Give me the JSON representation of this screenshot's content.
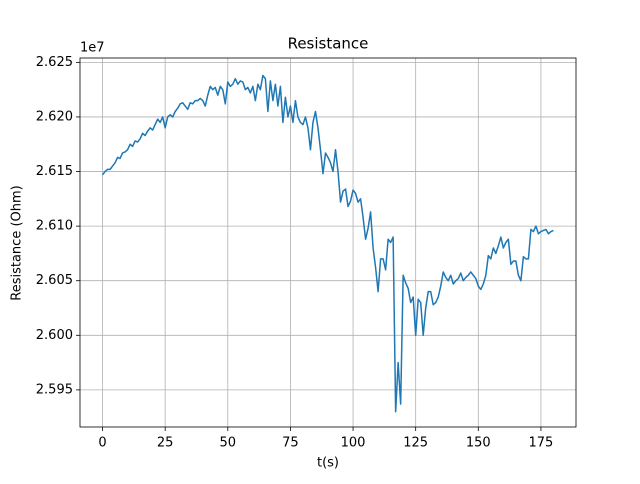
{
  "chart_data": {
    "type": "line",
    "title": "Resistance",
    "x_label": "t(s)",
    "y_label": "Resistance (Ohm)",
    "y_offset_text": "1e7",
    "x": [
      0,
      1,
      2,
      3,
      4,
      5,
      6,
      7,
      8,
      9,
      10,
      11,
      12,
      13,
      14,
      15,
      16,
      17,
      18,
      19,
      20,
      21,
      22,
      23,
      24,
      25,
      26,
      27,
      28,
      29,
      30,
      31,
      32,
      33,
      34,
      35,
      36,
      37,
      38,
      39,
      40,
      41,
      42,
      43,
      44,
      45,
      46,
      47,
      48,
      49,
      50,
      51,
      52,
      53,
      54,
      55,
      56,
      57,
      58,
      59,
      60,
      61,
      62,
      63,
      64,
      65,
      66,
      67,
      68,
      69,
      70,
      71,
      72,
      73,
      74,
      75,
      76,
      77,
      78,
      79,
      80,
      81,
      82,
      83,
      84,
      85,
      86,
      87,
      88,
      89,
      90,
      91,
      92,
      93,
      94,
      95,
      96,
      97,
      98,
      99,
      100,
      101,
      102,
      103,
      104,
      105,
      106,
      107,
      108,
      109,
      110,
      111,
      112,
      113,
      114,
      115,
      116,
      117,
      118,
      119,
      120,
      121,
      122,
      123,
      124,
      125,
      126,
      127,
      128,
      129,
      130,
      131,
      132,
      133,
      134,
      135,
      136,
      137,
      138,
      139,
      140,
      141,
      142,
      143,
      144,
      145,
      146,
      147,
      148,
      149,
      150,
      151,
      152,
      153,
      154,
      155,
      156,
      157,
      158,
      159,
      160,
      161,
      162,
      163,
      164,
      165,
      166,
      167,
      168,
      169,
      170,
      171,
      172,
      173,
      174,
      175,
      176,
      177,
      178,
      179,
      180
    ],
    "series": [
      {
        "name": "Resistance",
        "color": "#1f77b4",
        "values": [
          26147000,
          26150000,
          26152000,
          26152000,
          26155000,
          26158000,
          26163000,
          26162000,
          26167000,
          26168000,
          26170000,
          26175000,
          26173000,
          26178000,
          26177000,
          26180000,
          26185000,
          26183000,
          26187000,
          26190000,
          26188000,
          26193000,
          26198000,
          26195000,
          26200000,
          26190000,
          26200000,
          26202000,
          26200000,
          26205000,
          26208000,
          26212000,
          26213000,
          26210000,
          26207000,
          26213000,
          26212000,
          26215000,
          26215000,
          26217000,
          26215000,
          26210000,
          26220000,
          26228000,
          26225000,
          26227000,
          26220000,
          26228000,
          26225000,
          26212000,
          26232000,
          26228000,
          26230000,
          26235000,
          26230000,
          26233000,
          26232000,
          26225000,
          26227000,
          26222000,
          26228000,
          26215000,
          26230000,
          26225000,
          26238000,
          26235000,
          26205000,
          26233000,
          26215000,
          26230000,
          26210000,
          26228000,
          26195000,
          26218000,
          26200000,
          26210000,
          26195000,
          26215000,
          26200000,
          26195000,
          26193000,
          26200000,
          26190000,
          26170000,
          26195000,
          26205000,
          26190000,
          26170000,
          26148000,
          26167000,
          26163000,
          26158000,
          26150000,
          26170000,
          26150000,
          26122000,
          26132000,
          26134000,
          26118000,
          26123000,
          26133000,
          26130000,
          26122000,
          26125000,
          26108000,
          26088000,
          26098000,
          26113000,
          26080000,
          26062000,
          26040000,
          26070000,
          26070000,
          26060000,
          26088000,
          26085000,
          26090000,
          25930000,
          25975000,
          25937000,
          26055000,
          26048000,
          26043000,
          26030000,
          26035000,
          26000000,
          26033000,
          26030000,
          26000000,
          26025000,
          26040000,
          26040000,
          26028000,
          26030000,
          26035000,
          26045000,
          26058000,
          26053000,
          26050000,
          26055000,
          26047000,
          26050000,
          26052000,
          26057000,
          26050000,
          26053000,
          26055000,
          26058000,
          26055000,
          26052000,
          26045000,
          26042000,
          26047000,
          26055000,
          26073000,
          26070000,
          26080000,
          26075000,
          26082000,
          26090000,
          26080000,
          26085000,
          26088000,
          26065000,
          26068000,
          26068000,
          26055000,
          26050000,
          26072000,
          26070000,
          26070000,
          26097000,
          26095000,
          26100000,
          26093000,
          26095000,
          26096000,
          26097000,
          26093000,
          26095000,
          26096000
        ]
      }
    ],
    "xlim": [
      -9,
      189
    ],
    "xticks": [
      0,
      25,
      50,
      75,
      100,
      125,
      150,
      175
    ],
    "ylim": [
      25916000,
      26254000
    ],
    "yticks": [
      {
        "value": 25950000,
        "label": "2.595"
      },
      {
        "value": 26000000,
        "label": "2.600"
      },
      {
        "value": 26050000,
        "label": "2.605"
      },
      {
        "value": 26100000,
        "label": "2.610"
      },
      {
        "value": 26150000,
        "label": "2.615"
      },
      {
        "value": 26200000,
        "label": "2.620"
      },
      {
        "value": 26250000,
        "label": "2.625"
      }
    ],
    "grid": true
  }
}
